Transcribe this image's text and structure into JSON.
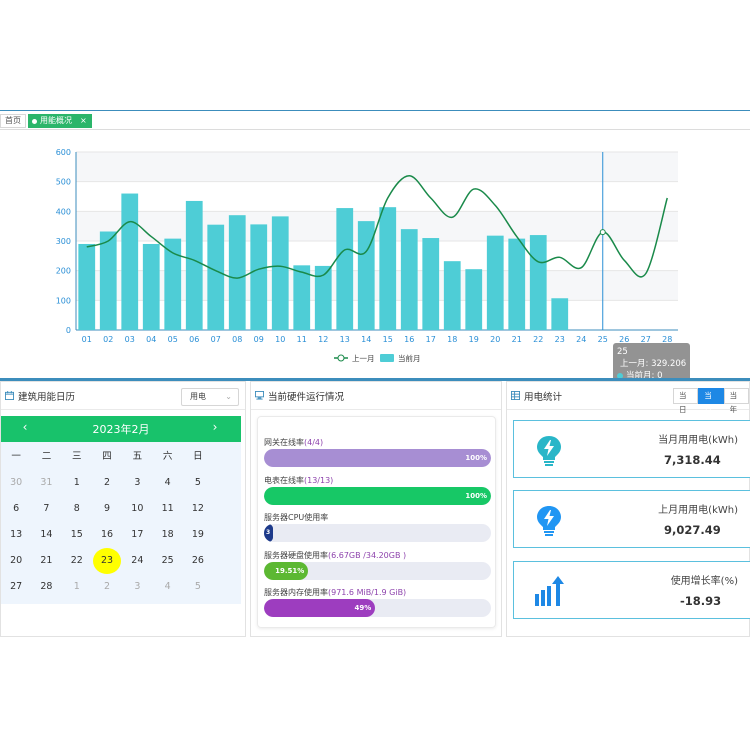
{
  "tabs": {
    "home": "首页",
    "active": "用能概况",
    "close": "×"
  },
  "chart_data": {
    "type": "bar",
    "categories": [
      "01",
      "02",
      "03",
      "04",
      "05",
      "06",
      "07",
      "08",
      "09",
      "10",
      "11",
      "12",
      "13",
      "14",
      "15",
      "16",
      "17",
      "18",
      "19",
      "20",
      "21",
      "22",
      "23",
      "24",
      "25",
      "26",
      "27",
      "28"
    ],
    "series": [
      {
        "name": "上一月",
        "kind": "line",
        "color": "#1a8a4a",
        "values": [
          280,
          300,
          365,
          315,
          260,
          235,
          200,
          175,
          205,
          215,
          195,
          185,
          270,
          265,
          445,
          520,
          445,
          380,
          475,
          420,
          315,
          230,
          245,
          210,
          330,
          235,
          190,
          445
        ]
      },
      {
        "name": "当前月",
        "kind": "bar",
        "color": "#4ecdd6",
        "values": [
          290,
          332,
          460,
          290,
          308,
          435,
          355,
          387,
          356,
          383,
          218,
          216,
          411,
          367,
          414,
          340,
          310,
          232,
          205,
          318,
          308,
          320,
          107,
          0,
          0,
          0,
          0,
          0
        ]
      }
    ],
    "ylim": [
      0,
      600
    ],
    "yticks": [
      "0",
      "100",
      "200",
      "300",
      "400",
      "500",
      "600"
    ],
    "grid": true,
    "legend": "bottom-center",
    "tooltip": {
      "title": "25",
      "line1": "上一月: 329.206",
      "line2": "当前月: 0"
    }
  },
  "calendar_panel": {
    "title": "建筑用能日历",
    "select_value": "用电",
    "month_title": "2023年2月",
    "weekdays": [
      "一",
      "二",
      "三",
      "四",
      "五",
      "六",
      "日"
    ],
    "weeks": [
      [
        {
          "d": "30",
          "dim": true
        },
        {
          "d": "31",
          "dim": true
        },
        {
          "d": "1"
        },
        {
          "d": "2"
        },
        {
          "d": "3"
        },
        {
          "d": "4"
        },
        {
          "d": "5"
        }
      ],
      [
        {
          "d": "6"
        },
        {
          "d": "7"
        },
        {
          "d": "8"
        },
        {
          "d": "9"
        },
        {
          "d": "10"
        },
        {
          "d": "11"
        },
        {
          "d": "12"
        }
      ],
      [
        {
          "d": "13"
        },
        {
          "d": "14"
        },
        {
          "d": "15"
        },
        {
          "d": "16"
        },
        {
          "d": "17"
        },
        {
          "d": "18"
        },
        {
          "d": "19"
        }
      ],
      [
        {
          "d": "20"
        },
        {
          "d": "21"
        },
        {
          "d": "22"
        },
        {
          "d": "23",
          "today": true
        },
        {
          "d": "24"
        },
        {
          "d": "25"
        },
        {
          "d": "26"
        }
      ],
      [
        {
          "d": "27"
        },
        {
          "d": "28"
        },
        {
          "d": "1",
          "dim": true
        },
        {
          "d": "2",
          "dim": true
        },
        {
          "d": "3",
          "dim": true
        },
        {
          "d": "4",
          "dim": true
        },
        {
          "d": "5",
          "dim": true
        }
      ]
    ]
  },
  "hardware_panel": {
    "title": "当前硬件运行情况",
    "items": [
      {
        "label": "网关在线率",
        "detail": "(4/4)",
        "pct_text": "100%",
        "fraction": 1.0,
        "color": "#a78ed3"
      },
      {
        "label": "电表在线率",
        "detail": "(13/13)",
        "pct_text": "100%",
        "fraction": 1.0,
        "color": "#17c866"
      },
      {
        "label": "服务器CPU使用率",
        "detail": "",
        "pct_text": "3",
        "fraction": 0.03,
        "color": "#1d3a8a"
      },
      {
        "label": "服务器硬盘使用率",
        "detail": "(6.67GB /34.20GB )",
        "pct_text": "19.51%",
        "fraction": 0.1951,
        "color": "#5cb832"
      },
      {
        "label": "服务器内存使用率",
        "detail": "(971.6 MiB/1.9 GiB)",
        "pct_text": "49%",
        "fraction": 0.49,
        "color": "#9d3dbf"
      }
    ]
  },
  "stats_panel": {
    "title": "用电统计",
    "segments": [
      "当日",
      "当月",
      "当年"
    ],
    "active_segment": "当月",
    "cards": [
      {
        "title": "当月用用电(kWh)",
        "value": "7,318.44",
        "icon": "lightbulb-bolt-icon",
        "icon_color": "#29b6c8"
      },
      {
        "title": "上月用用电(kWh)",
        "value": "9,027.49",
        "icon": "lightbulb-bolt-icon",
        "icon_color": "#2196f3"
      },
      {
        "title": "使用增长率(%)",
        "value": "-18.93",
        "icon": "bar-growth-icon",
        "icon_color": "#1e88e5"
      }
    ]
  }
}
